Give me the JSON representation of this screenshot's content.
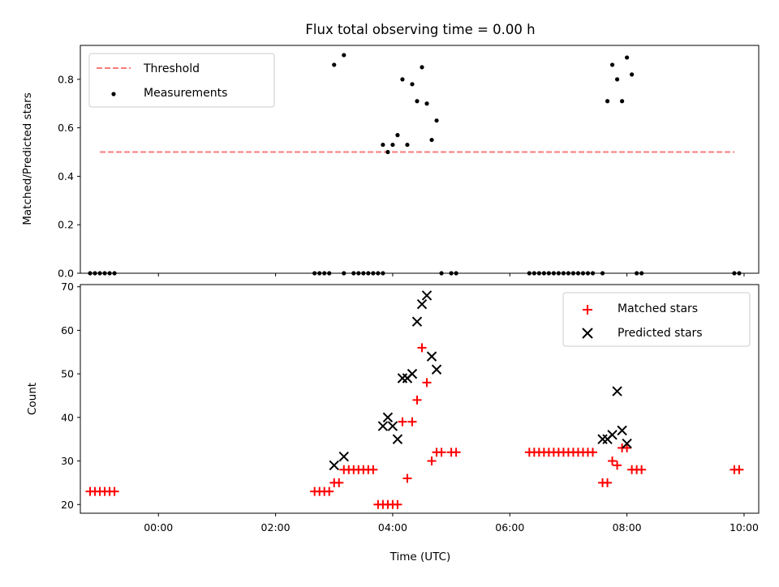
{
  "chart_data": [
    {
      "type": "line",
      "title": "Flux total observing time = 0.00 h",
      "xlabel": "",
      "ylabel": "Matched/Predicted stars",
      "ylim": [
        0,
        0.94
      ],
      "yticks": [
        "0.0",
        "0.2",
        "0.4",
        "0.6",
        "0.8"
      ],
      "ytick_values": [
        0.0,
        0.2,
        0.4,
        0.6,
        0.8
      ],
      "legend": {
        "placement": "top-left",
        "entries": [
          "Threshold",
          "Measurements"
        ]
      },
      "threshold": {
        "name": "Threshold",
        "value": 0.5,
        "x": [
          "23:00",
          "09:50"
        ],
        "color": "#f87c7c",
        "style": "dashed"
      },
      "series": [
        {
          "name": "Measurements",
          "color": "#000000",
          "marker": "dot",
          "points": [
            [
              "22:50",
              0
            ],
            [
              "22:55",
              0
            ],
            [
              "23:00",
              0
            ],
            [
              "23:05",
              0
            ],
            [
              "23:10",
              0
            ],
            [
              "23:15",
              0
            ],
            [
              "02:40",
              0
            ],
            [
              "02:45",
              0
            ],
            [
              "02:50",
              0
            ],
            [
              "02:55",
              0
            ],
            [
              "03:00",
              0.86
            ],
            [
              "03:10",
              0.9
            ],
            [
              "03:10",
              0
            ],
            [
              "03:20",
              0
            ],
            [
              "03:25",
              0
            ],
            [
              "03:30",
              0
            ],
            [
              "03:35",
              0
            ],
            [
              "03:40",
              0
            ],
            [
              "03:45",
              0
            ],
            [
              "03:50",
              0
            ],
            [
              "03:50",
              0.53
            ],
            [
              "03:55",
              0.5
            ],
            [
              "04:00",
              0.53
            ],
            [
              "04:05",
              0.57
            ],
            [
              "04:10",
              0.8
            ],
            [
              "04:15",
              0.53
            ],
            [
              "04:20",
              0.78
            ],
            [
              "04:25",
              0.71
            ],
            [
              "04:30",
              0.85
            ],
            [
              "04:35",
              0.7
            ],
            [
              "04:40",
              0.55
            ],
            [
              "04:45",
              0.63
            ],
            [
              "04:50",
              0
            ],
            [
              "05:00",
              0
            ],
            [
              "05:05",
              0
            ],
            [
              "06:20",
              0
            ],
            [
              "06:25",
              0
            ],
            [
              "06:30",
              0
            ],
            [
              "06:35",
              0
            ],
            [
              "06:40",
              0
            ],
            [
              "06:45",
              0
            ],
            [
              "06:50",
              0
            ],
            [
              "06:55",
              0
            ],
            [
              "07:00",
              0
            ],
            [
              "07:05",
              0
            ],
            [
              "07:10",
              0
            ],
            [
              "07:15",
              0
            ],
            [
              "07:20",
              0
            ],
            [
              "07:25",
              0
            ],
            [
              "07:35",
              0
            ],
            [
              "07:40",
              0.71
            ],
            [
              "07:45",
              0.86
            ],
            [
              "07:50",
              0.8
            ],
            [
              "07:55",
              0.71
            ],
            [
              "08:00",
              0.89
            ],
            [
              "08:05",
              0.82
            ],
            [
              "08:10",
              0
            ],
            [
              "08:15",
              0
            ],
            [
              "09:50",
              0
            ],
            [
              "09:55",
              0
            ]
          ]
        }
      ]
    },
    {
      "type": "scatter",
      "title": "",
      "xlabel": "Time (UTC)",
      "ylabel": "Count",
      "ylim": [
        18,
        70.5
      ],
      "yticks": [
        "20",
        "30",
        "40",
        "50",
        "60",
        "70"
      ],
      "ytick_values": [
        20,
        30,
        40,
        50,
        60,
        70
      ],
      "xlim": [
        "22:40",
        "10:15"
      ],
      "xticks": [
        "00:00",
        "02:00",
        "04:00",
        "06:00",
        "08:00",
        "10:00"
      ],
      "xtick_values": [
        "00:00",
        "02:00",
        "04:00",
        "06:00",
        "08:00",
        "10:00"
      ],
      "legend": {
        "placement": "top-right",
        "entries": [
          "Matched stars",
          "Predicted stars"
        ]
      },
      "series": [
        {
          "name": "Matched stars",
          "color": "#ff0000",
          "marker": "plus",
          "points": [
            [
              "22:50",
              23
            ],
            [
              "22:55",
              23
            ],
            [
              "23:00",
              23
            ],
            [
              "23:05",
              23
            ],
            [
              "23:10",
              23
            ],
            [
              "23:15",
              23
            ],
            [
              "02:40",
              23
            ],
            [
              "02:45",
              23
            ],
            [
              "02:50",
              23
            ],
            [
              "02:55",
              23
            ],
            [
              "03:00",
              25
            ],
            [
              "03:05",
              25
            ],
            [
              "03:10",
              28
            ],
            [
              "03:15",
              28
            ],
            [
              "03:20",
              28
            ],
            [
              "03:25",
              28
            ],
            [
              "03:30",
              28
            ],
            [
              "03:35",
              28
            ],
            [
              "03:40",
              28
            ],
            [
              "03:45",
              20
            ],
            [
              "03:50",
              20
            ],
            [
              "03:55",
              20
            ],
            [
              "04:00",
              20
            ],
            [
              "04:05",
              20
            ],
            [
              "04:10",
              39
            ],
            [
              "04:15",
              26
            ],
            [
              "04:20",
              39
            ],
            [
              "04:25",
              44
            ],
            [
              "04:30",
              56
            ],
            [
              "04:35",
              48
            ],
            [
              "04:40",
              30
            ],
            [
              "04:45",
              32
            ],
            [
              "04:50",
              32
            ],
            [
              "05:00",
              32
            ],
            [
              "05:05",
              32
            ],
            [
              "06:20",
              32
            ],
            [
              "06:25",
              32
            ],
            [
              "06:30",
              32
            ],
            [
              "06:35",
              32
            ],
            [
              "06:40",
              32
            ],
            [
              "06:45",
              32
            ],
            [
              "06:50",
              32
            ],
            [
              "06:55",
              32
            ],
            [
              "07:00",
              32
            ],
            [
              "07:05",
              32
            ],
            [
              "07:10",
              32
            ],
            [
              "07:15",
              32
            ],
            [
              "07:20",
              32
            ],
            [
              "07:25",
              32
            ],
            [
              "07:35",
              25
            ],
            [
              "07:40",
              25
            ],
            [
              "07:45",
              30
            ],
            [
              "07:50",
              29
            ],
            [
              "07:55",
              33
            ],
            [
              "08:00",
              33
            ],
            [
              "08:05",
              28
            ],
            [
              "08:10",
              28
            ],
            [
              "08:15",
              28
            ],
            [
              "09:50",
              28
            ],
            [
              "09:55",
              28
            ]
          ]
        },
        {
          "name": "Predicted stars",
          "color": "#000000",
          "marker": "x",
          "points": [
            [
              "03:00",
              29
            ],
            [
              "03:10",
              31
            ],
            [
              "03:50",
              38
            ],
            [
              "03:55",
              40
            ],
            [
              "04:00",
              38
            ],
            [
              "04:05",
              35
            ],
            [
              "04:10",
              49
            ],
            [
              "04:15",
              49
            ],
            [
              "04:20",
              50
            ],
            [
              "04:25",
              62
            ],
            [
              "04:30",
              66
            ],
            [
              "04:35",
              68
            ],
            [
              "04:40",
              54
            ],
            [
              "04:45",
              51
            ],
            [
              "07:35",
              35
            ],
            [
              "07:40",
              35
            ],
            [
              "07:45",
              36
            ],
            [
              "07:50",
              46
            ],
            [
              "07:55",
              37
            ],
            [
              "08:00",
              34
            ]
          ]
        }
      ]
    }
  ]
}
